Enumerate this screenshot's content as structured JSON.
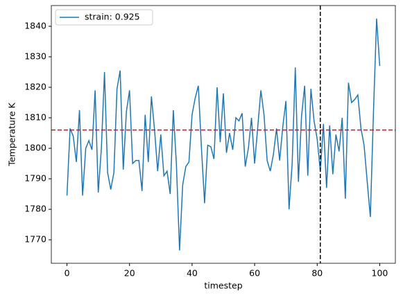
{
  "chart_data": {
    "type": "line",
    "xlabel": "timestep",
    "ylabel": "Temperature K",
    "x": [
      0,
      1,
      2,
      3,
      4,
      5,
      6,
      7,
      8,
      9,
      10,
      11,
      12,
      13,
      14,
      15,
      16,
      17,
      18,
      19,
      20,
      21,
      22,
      23,
      24,
      25,
      26,
      27,
      28,
      29,
      30,
      31,
      32,
      33,
      34,
      35,
      36,
      37,
      38,
      39,
      40,
      41,
      42,
      43,
      44,
      45,
      46,
      47,
      48,
      49,
      50,
      51,
      52,
      53,
      54,
      55,
      56,
      57,
      58,
      59,
      60,
      61,
      62,
      63,
      64,
      65,
      66,
      67,
      68,
      69,
      70,
      71,
      72,
      73,
      74,
      75,
      76,
      77,
      78,
      79,
      80,
      81,
      82,
      83,
      84,
      85,
      86,
      87,
      88,
      89,
      90,
      91,
      92,
      93,
      94,
      95,
      96,
      97,
      98,
      99,
      100
    ],
    "series": [
      {
        "name": "strain: 0.925",
        "color": "#1f77b4",
        "values": [
          1784.5,
          1806.5,
          1804,
          1795.5,
          1812.5,
          1784.5,
          1800,
          1802.5,
          1799.5,
          1819,
          1785.5,
          1800,
          1825,
          1792,
          1786.5,
          1792,
          1819.5,
          1825.5,
          1793,
          1812,
          1819,
          1795,
          1796,
          1796,
          1786,
          1811,
          1795.5,
          1817,
          1806,
          1792.5,
          1804.5,
          1791,
          1792.5,
          1785,
          1812.5,
          1794.5,
          1766.5,
          1788,
          1794,
          1795.5,
          1811,
          1816.5,
          1820.5,
          1800,
          1782,
          1801,
          1800.5,
          1796.5,
          1820,
          1802,
          1818,
          1798.5,
          1805,
          1799.5,
          1810,
          1809,
          1811.5,
          1794,
          1800,
          1810,
          1795,
          1807,
          1819,
          1811,
          1796,
          1792.5,
          1798,
          1806.5,
          1796,
          1807,
          1815.5,
          1780,
          1795,
          1826.5,
          1789,
          1810.5,
          1820.5,
          1791,
          1819.5,
          1809,
          1803,
          1792.5,
          1808,
          1787,
          1807.5,
          1791.5,
          1804.5,
          1799,
          1810,
          1783.5,
          1821.5,
          1815,
          1816,
          1817.5,
          1806.5,
          1801,
          1789,
          1777.5,
          1812,
          1842.5,
          1827
        ]
      }
    ],
    "hlines": [
      {
        "value": 1806,
        "color": "#ff0000"
      }
    ],
    "vlines": [
      {
        "value": 81,
        "color": "#000000"
      }
    ],
    "xlim": [
      -5,
      105
    ],
    "xticks": [
      0,
      20,
      40,
      60,
      80,
      100
    ],
    "ylim": [
      1762.3,
      1846.8
    ],
    "yticks": [
      1770,
      1780,
      1790,
      1800,
      1810,
      1820,
      1830,
      1840
    ],
    "legend": "upper left",
    "grid": false
  }
}
